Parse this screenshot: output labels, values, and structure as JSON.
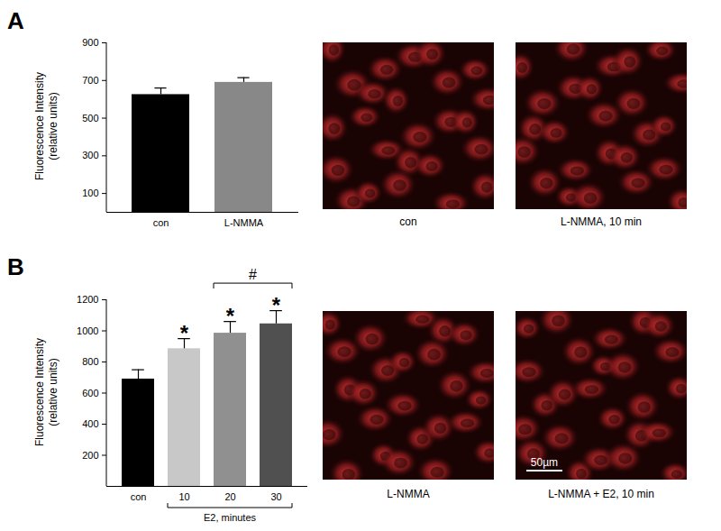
{
  "chart_data": [
    {
      "type": "bar",
      "title": "A",
      "y_label": "Fluorescence Intensity\n(relative units)",
      "categories": [
        "con",
        "L-NMMA"
      ],
      "values": [
        625,
        690
      ],
      "errors": [
        35,
        25
      ],
      "colors": [
        "#000000",
        "#888888"
      ],
      "ylim": [
        0,
        900
      ],
      "yticks": [
        100,
        300,
        500,
        700,
        900
      ],
      "images": [
        {
          "caption": "con"
        },
        {
          "caption": "L-NMMA, 10 min"
        }
      ]
    },
    {
      "type": "bar",
      "title": "B",
      "y_label": "Fluorescence Intensity\n(relative units)",
      "categories": [
        "con",
        "10",
        "20",
        "30"
      ],
      "values": [
        690,
        885,
        985,
        1045
      ],
      "errors": [
        60,
        65,
        75,
        85
      ],
      "colors": [
        "#000000",
        "#c8c8c8",
        "#909090",
        "#505050"
      ],
      "ylim": [
        0,
        1200
      ],
      "yticks": [
        200,
        400,
        600,
        800,
        1000,
        1200
      ],
      "annotations": [
        {
          "category": "10",
          "text": "*"
        },
        {
          "category": "20",
          "text": "*"
        },
        {
          "category": "30",
          "text": "*"
        }
      ],
      "brackets": [
        {
          "from": "20",
          "to": "30",
          "text": "#"
        }
      ],
      "group_label": {
        "from": "10",
        "to": "30",
        "text": "E2, minutes"
      },
      "images": [
        {
          "caption": "L-NMMA"
        },
        {
          "caption": "L-NMMA + E2, 10 min",
          "scale_bar": "50µm"
        }
      ]
    }
  ]
}
